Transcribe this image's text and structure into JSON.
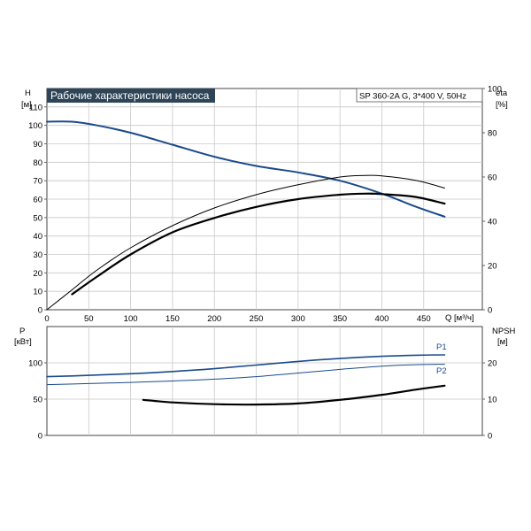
{
  "chart_data": [
    {
      "type": "line",
      "title": "Рабочие характеристики насоса",
      "subtitle": "SP 360-2A G, 3*400 V, 50Hz",
      "xlabel": "Q [м³/ч]",
      "ylabel_left": [
        "H",
        "[м]"
      ],
      "ylabel_right": [
        "eta",
        "[%]"
      ],
      "xlim": [
        0,
        520
      ],
      "ylim_left": [
        0,
        120
      ],
      "ylim_right": [
        0,
        100
      ],
      "x_ticks": [
        0,
        50,
        100,
        150,
        200,
        250,
        300,
        350,
        400,
        450
      ],
      "y_ticks_left": [
        0,
        10,
        20,
        30,
        40,
        50,
        60,
        70,
        80,
        90,
        100,
        110
      ],
      "y_ticks_right": [
        0,
        20,
        40,
        60,
        80,
        100
      ],
      "grid": true,
      "series": [
        {
          "axis": "left",
          "color": "#1a4a8c",
          "width": 2,
          "x": [
            0,
            30,
            60,
            100,
            150,
            200,
            250,
            300,
            350,
            400,
            440,
            475
          ],
          "y": [
            102,
            102,
            100,
            96,
            89.5,
            83,
            78,
            74.5,
            70,
            63,
            56,
            50.5
          ]
        },
        {
          "axis": "right",
          "color": "#000000",
          "width": 1,
          "x": [
            0,
            30,
            60,
            100,
            150,
            200,
            250,
            300,
            350,
            380,
            400,
            440,
            475
          ],
          "y": [
            0,
            9,
            18,
            28,
            38,
            46,
            52,
            56.5,
            60,
            60.7,
            60.5,
            58.5,
            55
          ]
        },
        {
          "axis": "right",
          "color": "#000000",
          "width": 2.2,
          "x": [
            30,
            60,
            100,
            150,
            200,
            250,
            300,
            350,
            380,
            400,
            440,
            475
          ],
          "y": [
            7,
            15,
            25,
            35,
            41.5,
            46.5,
            50,
            52,
            52.5,
            52.3,
            51,
            48
          ]
        }
      ]
    },
    {
      "type": "line",
      "ylabel_left": [
        "P",
        "[кВт]"
      ],
      "ylabel_right": [
        "NPSH",
        "[м]"
      ],
      "xlim": [
        0,
        520
      ],
      "ylim_left": [
        0,
        150
      ],
      "ylim_right": [
        0,
        30
      ],
      "y_ticks_left": [
        0,
        50,
        100
      ],
      "y_ticks_right": [
        0,
        10,
        20
      ],
      "grid": true,
      "series": [
        {
          "name": "P1",
          "axis": "left",
          "color": "#1a4a8c",
          "width": 1.6,
          "x": [
            0,
            30,
            100,
            150,
            200,
            250,
            300,
            350,
            400,
            440,
            475
          ],
          "y": [
            81,
            82,
            85,
            88,
            92,
            97,
            102,
            106,
            109,
            110.5,
            111
          ]
        },
        {
          "name": "P2",
          "axis": "left",
          "color": "#1a4a8c",
          "width": 1,
          "x": [
            0,
            50,
            100,
            150,
            200,
            250,
            300,
            350,
            400,
            440,
            475
          ],
          "y": [
            70,
            71.5,
            73,
            75,
            77.5,
            81,
            86,
            91,
            95.5,
            97.5,
            98
          ]
        },
        {
          "axis": "right",
          "color": "#000000",
          "width": 2.2,
          "x": [
            115,
            150,
            200,
            250,
            300,
            350,
            400,
            440,
            475
          ],
          "y": [
            9.8,
            9.1,
            8.6,
            8.5,
            8.8,
            9.8,
            11.2,
            12.6,
            13.7
          ]
        }
      ]
    }
  ]
}
